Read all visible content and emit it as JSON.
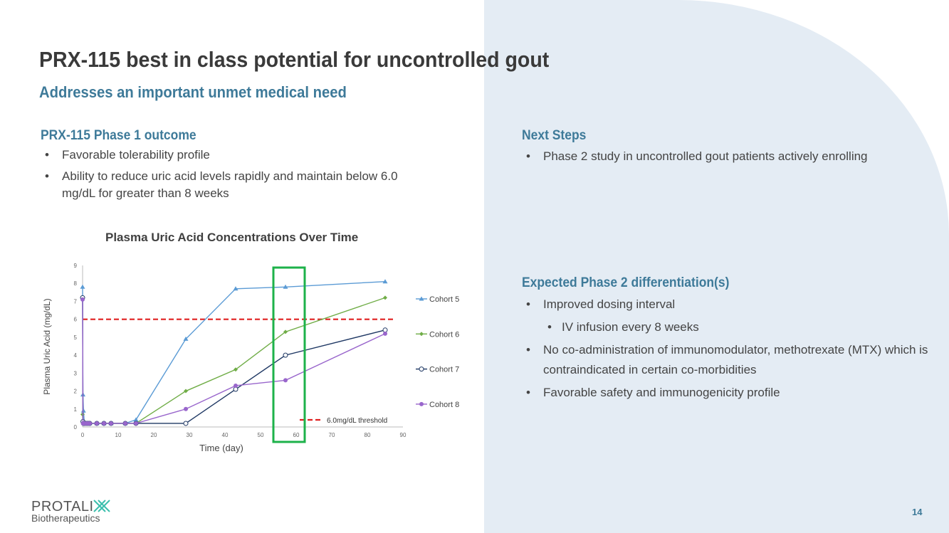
{
  "title": "PRX-115 best in class potential for uncontrolled gout",
  "subtitle": "Addresses an important unmet medical need",
  "left": {
    "heading": "PRX-115 Phase 1 outcome",
    "bullets": [
      "Favorable tolerability profile",
      "Ability to reduce uric acid levels rapidly and maintain below 6.0 mg/dL for greater than 8 weeks"
    ]
  },
  "next_steps": {
    "heading": "Next Steps",
    "bullets": [
      "Phase 2 study in uncontrolled gout patients actively enrolling"
    ]
  },
  "differentiation": {
    "heading": "Expected Phase 2 differentiation(s)",
    "bullets": [
      "Improved dosing interval",
      "IV infusion every 8 weeks",
      "No co-administration of immunomodulator, methotrexate (MTX) which is contraindicated in certain co-morbidities",
      "Favorable safety and immunogenicity profile"
    ]
  },
  "page_number": "14",
  "logo": {
    "name": "PROTALIX",
    "tagline": "Biotherapeutics"
  },
  "chart_data": {
    "type": "line",
    "title": "Plasma Uric Acid Concentrations Over Time",
    "xlabel": "Time (day)",
    "ylabel": "Plasma Uric Acid (mg/dL)",
    "xlim": [
      0,
      90
    ],
    "ylim": [
      0,
      9
    ],
    "xticks": [
      0,
      10,
      20,
      30,
      40,
      50,
      60,
      70,
      80,
      90
    ],
    "yticks": [
      0,
      1,
      2,
      3,
      4,
      5,
      6,
      7,
      8,
      9
    ],
    "x": [
      0,
      0.1,
      0.25,
      0.5,
      1,
      1.5,
      2,
      4,
      6,
      8,
      12,
      15,
      29,
      43,
      57,
      85
    ],
    "series": [
      {
        "name": "Cohort 5",
        "color": "#5b9bd5",
        "marker": "triangle",
        "values": [
          7.8,
          1.8,
          0.9,
          0.2,
          0.2,
          0.2,
          0.2,
          0.2,
          0.2,
          0.2,
          0.2,
          0.4,
          4.9,
          7.7,
          7.8,
          8.1
        ]
      },
      {
        "name": "Cohort 6",
        "color": "#70ad47",
        "marker": "diamond",
        "values": [
          0.7,
          0.2,
          0.2,
          0.2,
          0.2,
          0.2,
          0.2,
          0.2,
          0.2,
          0.2,
          0.2,
          0.2,
          2.0,
          3.2,
          5.3,
          7.2
        ]
      },
      {
        "name": "Cohort 7",
        "color": "#1f3864",
        "marker": "circle-open",
        "values": [
          7.2,
          0.3,
          0.2,
          0.2,
          0.2,
          0.2,
          0.2,
          0.2,
          0.2,
          0.2,
          0.2,
          0.2,
          0.2,
          2.1,
          4.0,
          5.4
        ]
      },
      {
        "name": "Cohort 8",
        "color": "#9966cc",
        "marker": "circle",
        "values": [
          7.1,
          0.2,
          0.2,
          0.2,
          0.2,
          0.2,
          0.2,
          0.2,
          0.2,
          0.2,
          0.2,
          0.2,
          1.0,
          2.3,
          2.6,
          5.2
        ]
      }
    ],
    "threshold": {
      "value": 6,
      "label": "6.0mg/dL  threshold",
      "color": "#e02020"
    },
    "highlight": {
      "x_range": [
        54,
        62
      ],
      "color": "#1db24a"
    },
    "legend": "right"
  }
}
